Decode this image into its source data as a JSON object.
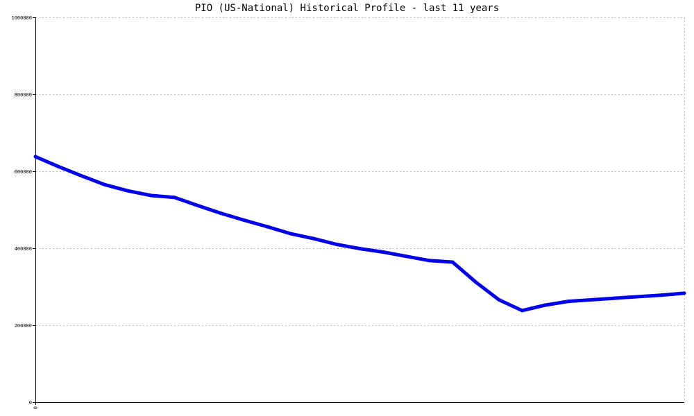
{
  "chart_data": {
    "type": "line",
    "title": "PIO (US-National) Historical Profile - last 11 years",
    "xlabel": "",
    "ylabel": "",
    "ylim": [
      0,
      1000000
    ],
    "yticks": [
      0,
      200000,
      400000,
      600000,
      800000,
      1000000
    ],
    "ytick_labels": [
      "0",
      "200000",
      "400000",
      "600000",
      "800000",
      "1000000"
    ],
    "xtick_labels": [
      "0"
    ],
    "grid": true,
    "colors": {
      "line": "#0000ee",
      "grid": "#bbbbbb",
      "axis": "#000000"
    },
    "series": [
      {
        "values": [
          638000,
          612000,
          588000,
          565000,
          549000,
          537000,
          532000,
          511000,
          491000,
          473000,
          456000,
          438000,
          425000,
          410000,
          399000,
          390000,
          379000,
          368000,
          364000,
          312000,
          266000,
          238000,
          252000,
          262000,
          266000,
          270000,
          274000,
          278000,
          283000
        ]
      }
    ]
  }
}
